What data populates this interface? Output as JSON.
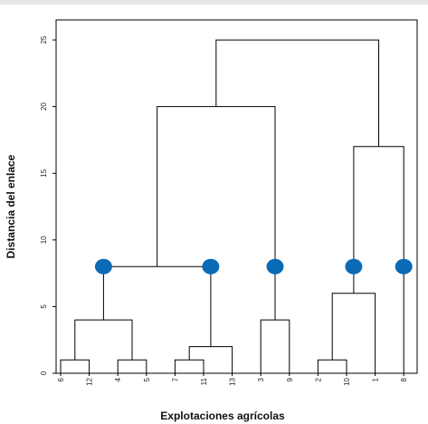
{
  "chart_data": {
    "type": "dendrogram",
    "xlabel": "Explotaciones agrícolas",
    "ylabel": "Distancia del enlace",
    "ylim": [
      0,
      26.5
    ],
    "y_ticks": [
      0,
      5,
      10,
      15,
      20,
      25
    ],
    "leaves": [
      "6",
      "12",
      "4",
      "5",
      "7",
      "11",
      "13",
      "3",
      "9",
      "2",
      "10",
      "1",
      "8"
    ],
    "merges": [
      {
        "left": "6",
        "right": "12",
        "height": 1
      },
      {
        "left": "4",
        "right": "5",
        "height": 1
      },
      {
        "left": "6-12",
        "right": "4-5",
        "height": 4
      },
      {
        "left": "7",
        "right": "11",
        "height": 1
      },
      {
        "left": "7-11",
        "right": "13",
        "height": 2
      },
      {
        "left": "3",
        "right": "9",
        "height": 4
      },
      {
        "left": "6-12-4-5",
        "right": "7-11-13",
        "height": 8
      },
      {
        "left": "6-12-4-5-7-11-13",
        "right": "3-9",
        "height": 20
      },
      {
        "left": "2",
        "right": "10",
        "height": 1
      },
      {
        "left": "2-10",
        "right": "1",
        "height": 6
      },
      {
        "left": "2-10-1",
        "right": "8",
        "height": 17
      },
      {
        "left": "6-12-4-5-7-11-13-3-9",
        "right": "2-10-1-8",
        "height": 25
      }
    ],
    "cut_height": 8,
    "cluster_markers": 5,
    "marker_color": "#0a6ab5",
    "line_color": "#000000",
    "grid": false
  }
}
